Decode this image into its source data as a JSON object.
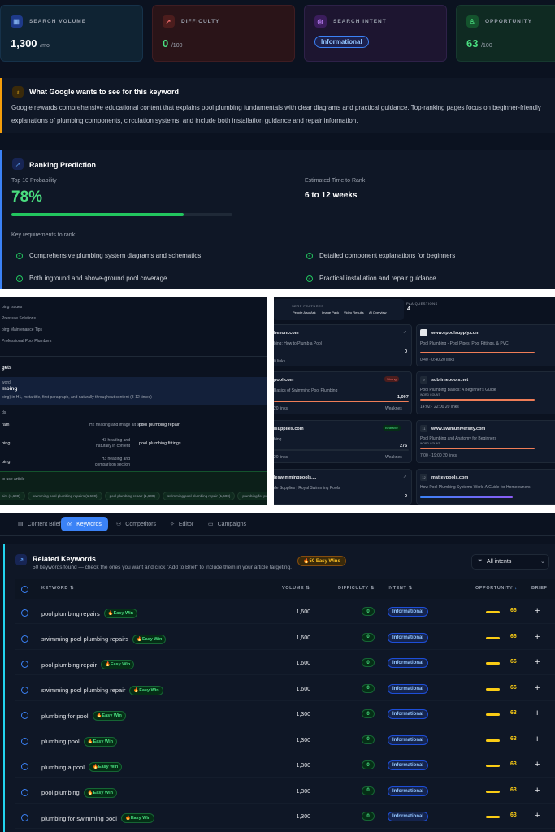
{
  "metrics": [
    {
      "label": "SEARCH VOLUME",
      "value": "1,300",
      "unit": "/mo",
      "icon": "bar-chart-icon"
    },
    {
      "label": "DIFFICULTY",
      "value": "0",
      "unit": "/100",
      "icon": "trend-icon"
    },
    {
      "label": "SEARCH INTENT",
      "value": "Informational",
      "icon": "target-icon"
    },
    {
      "label": "OPPORTUNITY",
      "value": "63",
      "unit": "/100",
      "icon": "trophy-icon"
    }
  ],
  "google": {
    "title": "What Google wants to see for this keyword",
    "body1": "Google rewards comprehensive educational content that explains pool plumbing fundamentals with clear diagrams and practical guidance. Top-ranking pages focus on beginner-friendly",
    "body2": "explanations of plumbing components, circulation systems, and include both installation guidance and repair information."
  },
  "ranking": {
    "title": "Ranking Prediction",
    "prob_label": "Top 10 Probability",
    "prob_value": "78%",
    "prob_fraction": 0.78,
    "time_label": "Estimated Time to Rank",
    "time_value": "6 to 12 weeks",
    "req_label": "Key requirements to rank:",
    "requirements": [
      "Comprehensive plumbing system diagrams and schematics",
      "Detailed component explanations for beginners",
      "Both inground and above-ground pool coverage",
      "Practical installation and repair guidance"
    ]
  },
  "brief_left": {
    "outline": [
      "bing Issues",
      "Pressure Solutions",
      "bing Maintenance Tips",
      "Professional Pool Plumbers"
    ],
    "section": "gets",
    "kw_label": "word",
    "kw_value": "mbing",
    "kw_note": "bing) in H1, meta title, first paragraph, and naturally throughout content (8-12 times)",
    "sec_label": "ds",
    "rows": [
      {
        "a": "ram",
        "note": "H2 heading and image alt text",
        "kw": "pool plumbing repair"
      },
      {
        "a": "bing",
        "note": "H3 heading and naturally in content",
        "kw": "pool plumbing fittings"
      },
      {
        "a": "bing",
        "note": "H3 heading and comparison section",
        "kw": ""
      }
    ],
    "footer": "to use article",
    "chips": [
      "airs (1,600)",
      "swimming pool plumbing repairs (1,600)",
      "pool plumbing repair (1,600)",
      "swimming pool plumbing repair (1,600)",
      "plumbing for pool (1,300)"
    ]
  },
  "competitors": {
    "serp_label": "SERP FEATURES",
    "features": [
      "People Also Ask",
      "Image Pack",
      "Video Results",
      "AI Overview"
    ],
    "paa_label": "PAA QUESTIONS",
    "paa_value": "4",
    "left": [
      {
        "site": "hesom.com",
        "desc": "bing: How to Plumb a Pool",
        "num": "0",
        "meta": "0 links"
      },
      {
        "site": "pool.com",
        "desc": "Basics of Swimming Pool Plumbing",
        "num": "1,097",
        "badge": "Strong",
        "meta": "20 links",
        "extra": "Weaknes"
      },
      {
        "site": "lsupplies.com",
        "desc": "bing",
        "num": "276",
        "badge": "Beatable",
        "meta": "20 links",
        "extra": "Weaknes"
      },
      {
        "site": "leswimmingpools....",
        "desc": "de Supplies | Royal Swimming Pools",
        "num": "0",
        "meta": ""
      }
    ],
    "right": [
      {
        "rank": "",
        "site": "www.epoolsupply.com",
        "desc": "Pool Plumbing - Pool Pipes, Pool Fittings, & PVC",
        "score": "WORD COUNT",
        "meta": "0:40 · 0:40    20 links"
      },
      {
        "rank": "9",
        "site": "sublimepools.net",
        "desc": "Pool Plumbing Basics: A Beginner's Guide",
        "score": "WORD COUNT",
        "meta": "14:02 · 22:00    20 links"
      },
      {
        "rank": "11",
        "site": "www.swimuniversity.com",
        "desc": "Pool Plumbing and Anatomy for Beginners",
        "score": "WORD COUNT",
        "meta": "7:00 · 19:00    20 links"
      },
      {
        "rank": "12",
        "site": "matteypools.com",
        "desc": "How Pool Plumbing Systems Work: A Guide for Homeowners",
        "score": "",
        "meta": ""
      }
    ]
  },
  "tabs": [
    {
      "label": "Content Brief",
      "icon": "document-icon"
    },
    {
      "label": "Keywords",
      "icon": "target-icon"
    },
    {
      "label": "Competitors",
      "icon": "users-icon"
    },
    {
      "label": "Editor",
      "icon": "sparkle-icon"
    },
    {
      "label": "Campaigns",
      "icon": "folder-icon"
    }
  ],
  "related": {
    "title": "Related Keywords",
    "subtitle": "50 keywords found — check the ones you want and click \"Add to Brief\" to include them in your article targeting.",
    "easy_badge": "50 Easy Wins",
    "filter": "All intents",
    "columns": {
      "keyword": "KEYWORD",
      "volume": "VOLUME",
      "difficulty": "DIFFICULTY",
      "intent": "INTENT",
      "opportunity": "OPPORTUNITY",
      "brief": "BRIEF"
    },
    "easy_label": "Easy Win",
    "rows": [
      {
        "kw": "pool plumbing repairs",
        "vol": "1,600",
        "diff": "0",
        "intent": "Informational",
        "opp": "66"
      },
      {
        "kw": "swimming pool plumbing repairs",
        "vol": "1,600",
        "diff": "0",
        "intent": "Informational",
        "opp": "66"
      },
      {
        "kw": "pool plumbing repair",
        "vol": "1,600",
        "diff": "0",
        "intent": "Informational",
        "opp": "66"
      },
      {
        "kw": "swimming pool plumbing repair",
        "vol": "1,600",
        "diff": "0",
        "intent": "Informational",
        "opp": "66"
      },
      {
        "kw": "plumbing for pool",
        "vol": "1,300",
        "diff": "0",
        "intent": "Informational",
        "opp": "63"
      },
      {
        "kw": "plumbing pool",
        "vol": "1,300",
        "diff": "0",
        "intent": "Informational",
        "opp": "63"
      },
      {
        "kw": "plumbing a pool",
        "vol": "1,300",
        "diff": "0",
        "intent": "Informational",
        "opp": "63"
      },
      {
        "kw": "pool plumbing",
        "vol": "1,300",
        "diff": "0",
        "intent": "Informational",
        "opp": "63"
      },
      {
        "kw": "plumbing for swimming pool",
        "vol": "1,300",
        "diff": "0",
        "intent": "Informational",
        "opp": "63"
      }
    ]
  },
  "colors": {
    "accent": "#3b82f6",
    "green": "#22c55e",
    "yellow": "#facc15"
  }
}
